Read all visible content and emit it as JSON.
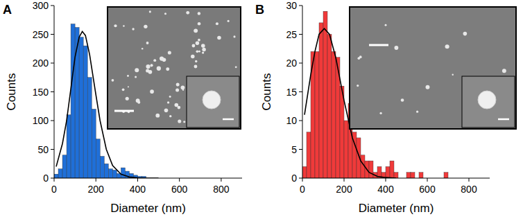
{
  "chart_data": [
    {
      "type": "histogram",
      "title": "A",
      "x_label": "Diameter (nm)",
      "y_label": "Counts",
      "bins": [
        0,
        20,
        40,
        60,
        80,
        100,
        120,
        140,
        160,
        180,
        200,
        220,
        240,
        260,
        280,
        300,
        320,
        340,
        360,
        380,
        400,
        420,
        440
      ],
      "values": [
        7,
        16,
        40,
        110,
        268,
        262,
        245,
        230,
        175,
        120,
        68,
        38,
        25,
        16,
        14,
        8,
        18,
        12,
        8,
        5,
        3,
        3
      ],
      "color": "#1f6fd8",
      "fit": {
        "x": [
          10,
          40,
          60,
          80,
          100,
          120,
          135,
          150,
          170,
          200,
          220,
          250,
          280,
          320,
          360,
          400,
          450,
          500
        ],
        "values": [
          20,
          60,
          100,
          155,
          210,
          245,
          255,
          248,
          215,
          145,
          100,
          50,
          22,
          7,
          2,
          0.5,
          0,
          0
        ],
        "color": "#000000"
      },
      "xlim": [
        0,
        900
      ],
      "xticks": [
        0,
        200,
        400,
        600,
        800
      ],
      "ylim": [
        0,
        300
      ],
      "yticks": [
        0,
        50,
        100,
        150,
        200,
        250,
        300
      ]
    },
    {
      "type": "histogram",
      "title": "B",
      "x_label": "Diameter (nm)",
      "y_label": "Counts",
      "bins": [
        0,
        20,
        40,
        60,
        80,
        100,
        120,
        140,
        160,
        180,
        200,
        220,
        240,
        260,
        280,
        300,
        320,
        340,
        360,
        380,
        400,
        420,
        440,
        460,
        480,
        500,
        520,
        540,
        560,
        580,
        600,
        620,
        640,
        660,
        680,
        700
      ],
      "values": [
        2,
        8,
        22,
        22,
        27,
        29,
        25,
        22,
        21,
        16,
        10,
        13,
        8,
        7,
        4,
        3,
        3,
        1,
        2,
        1,
        2,
        3,
        1,
        0,
        0,
        1,
        1,
        0,
        1,
        0,
        0,
        0,
        0,
        0,
        1
      ],
      "color": "#f03a3a",
      "fit": {
        "x": [
          10,
          40,
          60,
          80,
          105,
          130,
          160,
          200,
          240,
          280,
          320,
          360,
          400,
          450
        ],
        "values": [
          11,
          18,
          22,
          25,
          26,
          25,
          21,
          13.5,
          7,
          3,
          1,
          0.3,
          0.1,
          0
        ],
        "color": "#000000"
      },
      "xlim": [
        0,
        900
      ],
      "xticks": [
        0,
        200,
        400,
        600,
        800
      ],
      "ylim": [
        0,
        30
      ],
      "yticks": [
        0,
        5,
        10,
        15,
        20,
        25,
        30
      ]
    }
  ]
}
